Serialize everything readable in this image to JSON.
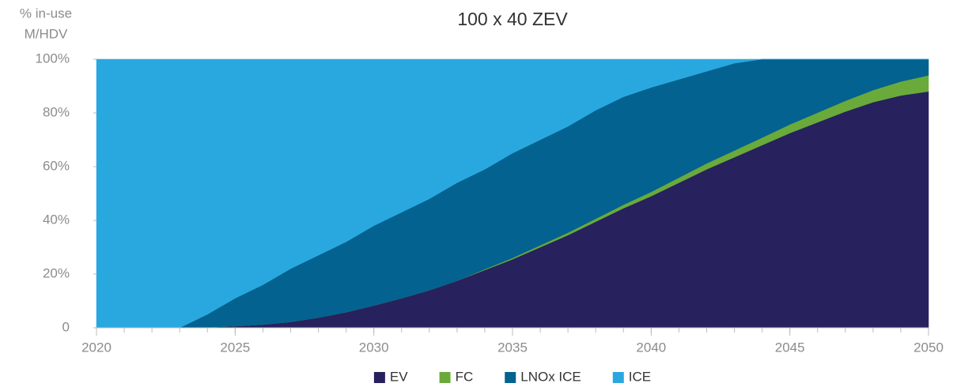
{
  "chart_data": {
    "type": "stacked_area",
    "title": "100 x 40 ZEV",
    "ylabel_lines": [
      "% in-use",
      "M/HDV"
    ],
    "x": [
      2020,
      2021,
      2022,
      2023,
      2024,
      2025,
      2026,
      2027,
      2028,
      2029,
      2030,
      2031,
      2032,
      2033,
      2034,
      2035,
      2036,
      2037,
      2038,
      2039,
      2040,
      2041,
      2042,
      2043,
      2044,
      2045,
      2046,
      2047,
      2048,
      2049,
      2050
    ],
    "series": [
      {
        "name": "EV",
        "color": "#27215e",
        "values": [
          0,
          0,
          0,
          0,
          0.2,
          0.6,
          1.2,
          2.2,
          3.8,
          5.8,
          8.3,
          11,
          14,
          17.5,
          21.5,
          25.5,
          30,
          34.5,
          39.5,
          44.5,
          49,
          54,
          59,
          63.5,
          68,
          72.5,
          76.5,
          80.5,
          84,
          86.5,
          88
        ]
      },
      {
        "name": "FC",
        "color": "#6aaa3a",
        "values": [
          0,
          0,
          0,
          0,
          0,
          0,
          0,
          0,
          0,
          0,
          0,
          0,
          0,
          0,
          0.3,
          0.5,
          0.7,
          0.9,
          1.1,
          1.3,
          1.6,
          1.9,
          2.2,
          2.5,
          2.8,
          3.2,
          3.6,
          4,
          4.5,
          5.2,
          6
        ]
      },
      {
        "name": "LNOx ICE",
        "color": "#03628f",
        "values": [
          0,
          0,
          0,
          0,
          4.8,
          10.4,
          14.8,
          19.8,
          23.2,
          26.2,
          29.7,
          32,
          34,
          36.5,
          37.2,
          39,
          39.3,
          39.6,
          40.4,
          40.2,
          38.9,
          36.6,
          34.3,
          32.5,
          29.2,
          24.3,
          19.9,
          15.5,
          11.5,
          8.3,
          6
        ]
      },
      {
        "name": "ICE",
        "color": "#29a8e0",
        "values": [
          100,
          100,
          100,
          100,
          95,
          89,
          84,
          78,
          73,
          68,
          62,
          57,
          52,
          46,
          41,
          35,
          30,
          25,
          19,
          14,
          10.5,
          7.5,
          4.5,
          1.5,
          0,
          0,
          0,
          0,
          0,
          0,
          0
        ]
      }
    ],
    "xlim": [
      2020,
      2050
    ],
    "xticks": [
      2020,
      2025,
      2030,
      2035,
      2040,
      2045,
      2050
    ],
    "ylim": [
      0,
      100
    ],
    "yticks": [
      0,
      {
        "value": 20,
        "label": "20%"
      },
      {
        "value": 40,
        "label": "40%"
      },
      {
        "value": 60,
        "label": "60%"
      },
      {
        "value": 80,
        "label": "80%"
      },
      {
        "value": 100,
        "label": "100%"
      }
    ],
    "legend": "bottom"
  }
}
